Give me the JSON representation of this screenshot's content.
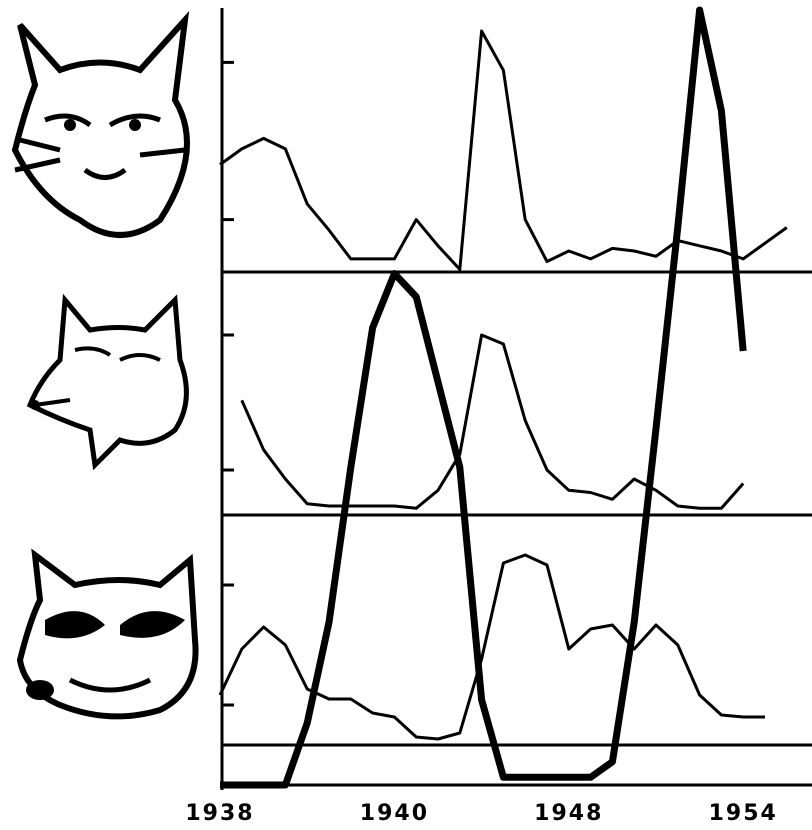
{
  "chart_data": {
    "type": "line",
    "categories": [
      "1938",
      null,
      null,
      null,
      null,
      null,
      null,
      null,
      "1940",
      null,
      null,
      null,
      null,
      null,
      null,
      null,
      "1948",
      null,
      null,
      null,
      null,
      null,
      null,
      null,
      "1954",
      null,
      null
    ],
    "panels": [
      {
        "ylim": [
          0,
          100
        ],
        "series": [
          {
            "color": "#000000",
            "values": [
              41,
              47,
              51,
              47,
              26,
              16,
              5,
              5,
              5,
              20,
              10,
              1,
              92,
              77,
              20,
              4,
              8,
              5,
              9,
              8,
              6,
              12,
              10,
              8,
              5,
              11,
              17
            ]
          }
        ]
      },
      {
        "ylim": [
          0,
          100
        ],
        "series": [
          {
            "color": "#000000",
            "values": [
              null,
              51,
              29,
              16,
              5,
              4,
              4,
              4,
              4,
              3,
              11,
              27,
              80,
              76,
              42,
              20,
              11,
              10,
              7,
              16,
              11,
              4,
              3,
              3,
              14,
              null,
              null
            ]
          }
        ]
      },
      {
        "ylim": [
          0,
          100
        ],
        "series": [
          {
            "color": "#000000",
            "values": [
              25,
              48,
              59,
              50,
              28,
              23,
              23,
              16,
              14,
              4,
              3,
              6,
              43,
              91,
              95,
              90,
              48,
              58,
              60,
              48,
              60,
              50,
              25,
              15,
              14,
              14,
              null
            ]
          }
        ]
      }
    ],
    "overlay": {
      "ylim": [
        0,
        100
      ],
      "color": "#000000",
      "values": [
        0,
        0,
        0,
        0,
        8,
        21,
        41,
        59,
        66,
        63,
        52,
        41,
        11,
        1,
        1,
        1,
        1,
        1,
        3,
        21,
        46,
        72,
        100,
        87,
        56,
        null,
        null
      ]
    }
  }
}
